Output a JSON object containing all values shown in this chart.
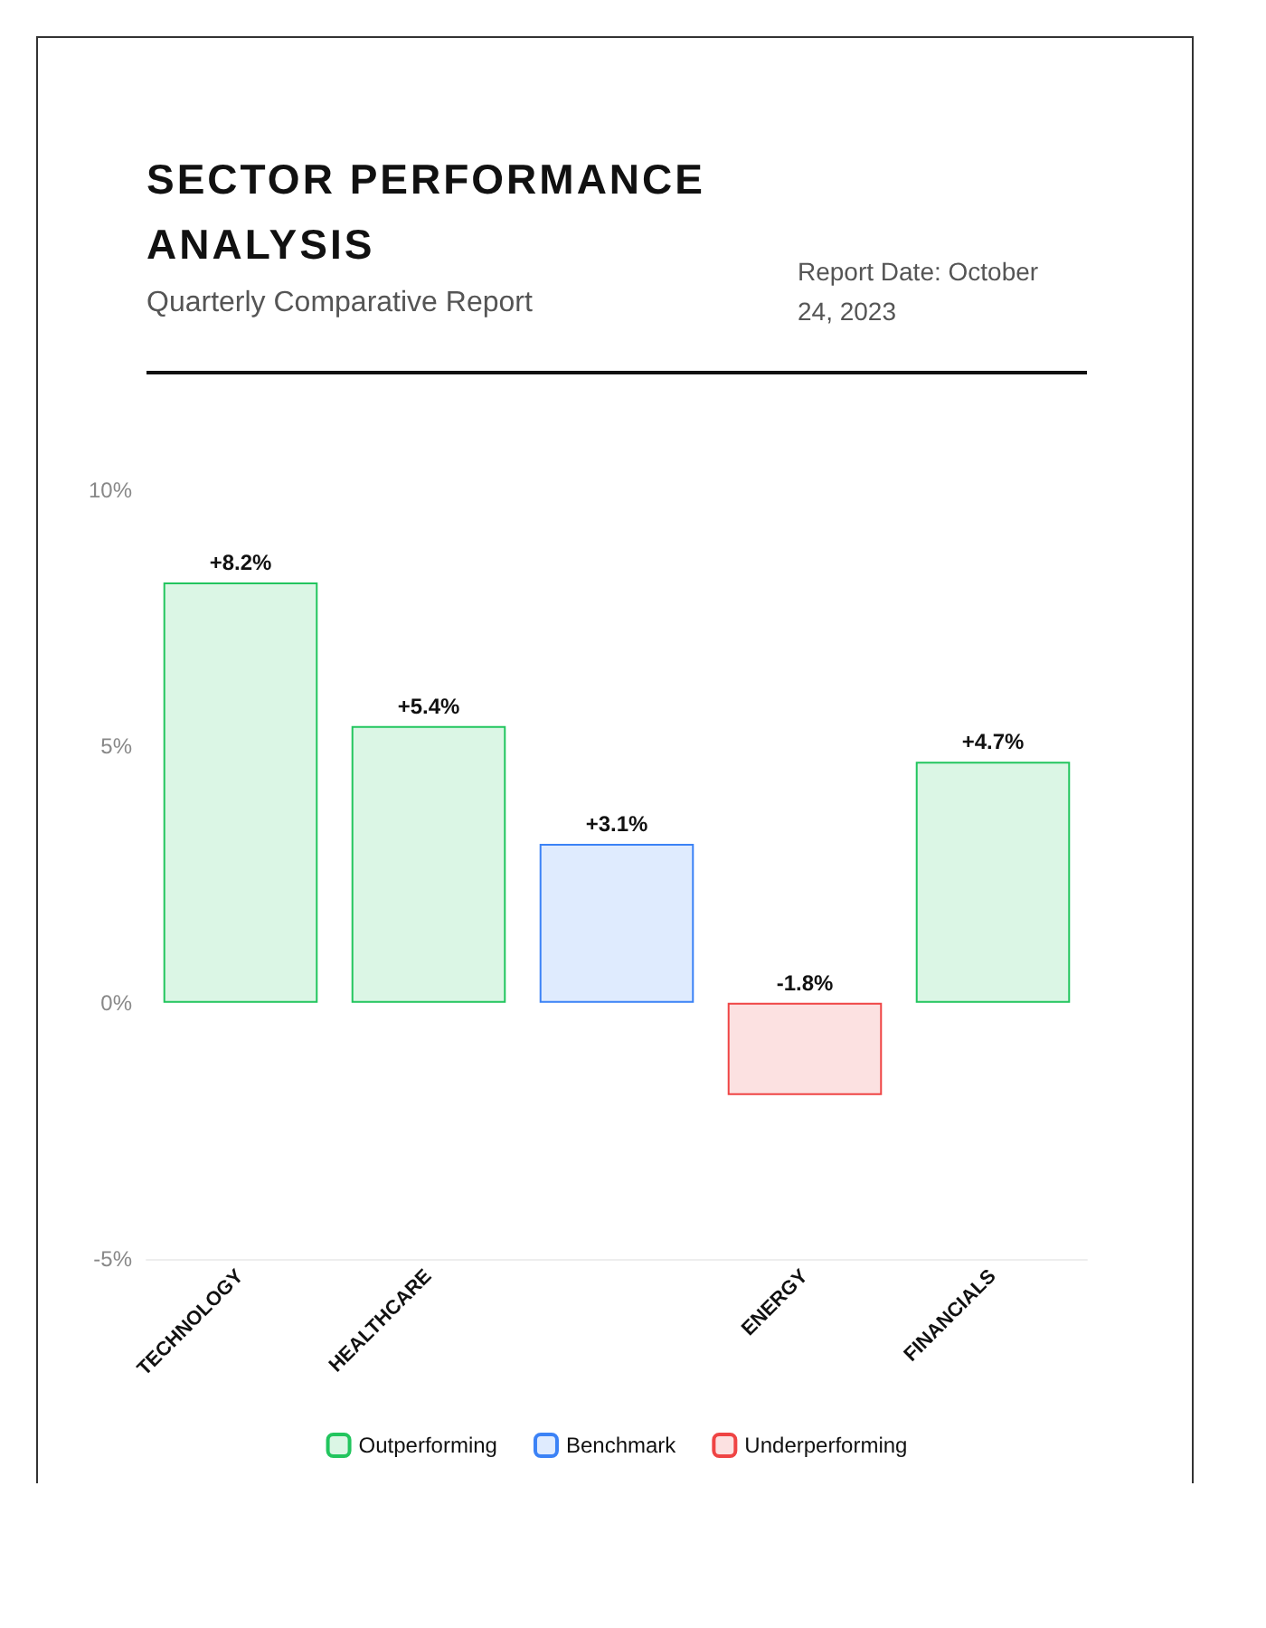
{
  "chart_data": {
    "type": "bar",
    "title": "SECTOR PERFORMANCE ANALYSIS",
    "subtitle": "Quarterly Comparative Report",
    "annotations": [
      "Report Date: October 24, 2023"
    ],
    "categories": [
      "TECHNOLOGY",
      "HEALTHCARE",
      null,
      "ENERGY",
      "FINANCIALS"
    ],
    "stacked": true,
    "series": [
      {
        "name": "Outperforming",
        "color": "#22c55e",
        "values": [
          8.2,
          5.4,
          null,
          null,
          4.7
        ]
      },
      {
        "name": "Benchmark",
        "color": "#3b82f6",
        "values": [
          null,
          null,
          3.1,
          null,
          null
        ]
      },
      {
        "name": "Underperforming",
        "color": "#ef4444",
        "values": [
          null,
          null,
          null,
          -1.8,
          null
        ]
      }
    ],
    "value_labels": [
      "+8.2%",
      "+5.4%",
      "+3.1%",
      "-1.8%",
      "+4.7%"
    ],
    "ylim": [
      -5,
      10
    ],
    "yticks": [
      {
        "value": -5,
        "label": "-5%"
      },
      {
        "value": 0,
        "label": "0%"
      },
      {
        "value": 5,
        "label": "5%"
      },
      {
        "value": 10,
        "label": "10%"
      }
    ],
    "grid": false,
    "legend": "bottom"
  }
}
